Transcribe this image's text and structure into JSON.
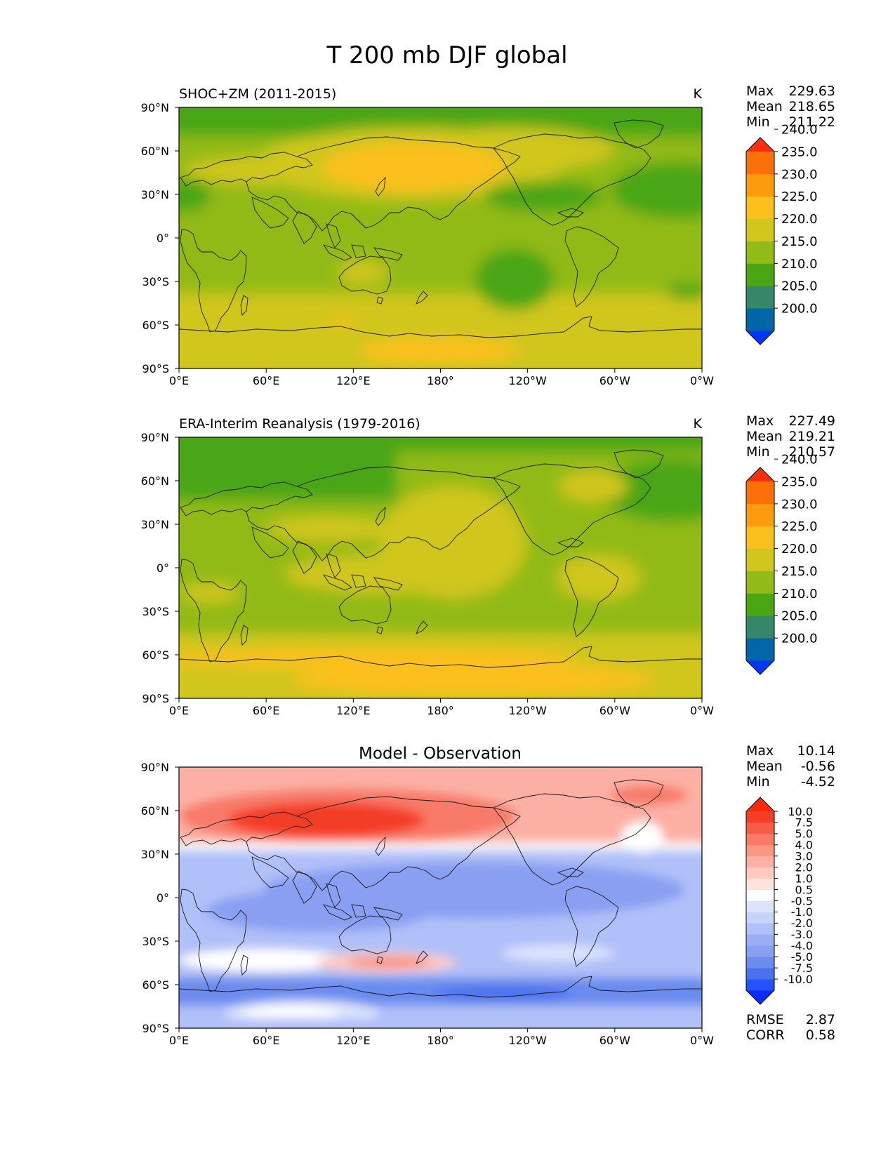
{
  "title": "T 200 mb DJF global",
  "colors": {
    "abs_levels": [
      "#0036ff",
      "#0066a8",
      "#36866a",
      "#4aa612",
      "#92ba18",
      "#d0c61e",
      "#fcc01c",
      "#fc9c0c",
      "#fc700a",
      "#fc2e10"
    ],
    "diff_levels": [
      "#0a2cff",
      "#2454f8",
      "#4a72f0",
      "#6a8cee",
      "#889ff2",
      "#9aaef6",
      "#b0c0f8",
      "#c6d4fa",
      "#dce4fc",
      "#ffffff",
      "#ffe2dc",
      "#ffcac0",
      "#fcb0a4",
      "#fa9686",
      "#f87a68",
      "#f65c48",
      "#f43e28",
      "#fc2a08"
    ],
    "coast": "#1a1a1a"
  },
  "chart_data": [
    {
      "type": "heatmap",
      "panel": "model",
      "title": "SHOC+ZM (2011-2015)",
      "units": "K",
      "stats": [
        {
          "label": "Max",
          "value": "229.63"
        },
        {
          "label": "Mean",
          "value": "218.65"
        },
        {
          "label": "Min",
          "value": "211.22"
        }
      ],
      "colorbar_ticks": [
        "200.0",
        "205.0",
        "210.0",
        "215.0",
        "220.0",
        "225.0",
        "230.0",
        "235.0",
        "240.0"
      ],
      "xticks": [
        "0°E",
        "60°E",
        "120°E",
        "180°",
        "120°W",
        "60°W",
        "0°W"
      ],
      "yticks": [
        "90°N",
        "60°N",
        "30°N",
        "0°",
        "30°S",
        "60°S",
        "90°S"
      ],
      "xlim": [
        0,
        360
      ],
      "ylim": [
        -90,
        90
      ]
    },
    {
      "type": "heatmap",
      "panel": "observation",
      "title": "ERA-Interim Reanalysis (1979-2016)",
      "units": "K",
      "stats": [
        {
          "label": "Max",
          "value": "227.49"
        },
        {
          "label": "Mean",
          "value": "219.21"
        },
        {
          "label": "Min",
          "value": "210.57"
        }
      ],
      "colorbar_ticks": [
        "200.0",
        "205.0",
        "210.0",
        "215.0",
        "220.0",
        "225.0",
        "230.0",
        "235.0",
        "240.0"
      ],
      "xticks": [
        "0°E",
        "60°E",
        "120°E",
        "180°",
        "120°W",
        "60°W",
        "0°W"
      ],
      "yticks": [
        "90°N",
        "60°N",
        "30°N",
        "0°",
        "30°S",
        "60°S",
        "90°S"
      ],
      "xlim": [
        0,
        360
      ],
      "ylim": [
        -90,
        90
      ]
    },
    {
      "type": "heatmap",
      "panel": "difference",
      "title": "Model - Observation",
      "units": "",
      "stats": [
        {
          "label": "Max",
          "value": "10.14"
        },
        {
          "label": "Mean",
          "value": "-0.56"
        },
        {
          "label": "Min",
          "value": "-4.52"
        }
      ],
      "colorbar_ticks": [
        "-10.0",
        "-7.5",
        "-5.0",
        "-4.0",
        "-3.0",
        "-2.0",
        "-1.0",
        "-0.5",
        "0.5",
        "1.0",
        "2.0",
        "3.0",
        "4.0",
        "5.0",
        "7.5",
        "10.0"
      ],
      "metrics": [
        {
          "label": "RMSE",
          "value": "2.87"
        },
        {
          "label": "CORR",
          "value": "0.58"
        }
      ],
      "xticks": [
        "0°E",
        "60°E",
        "120°E",
        "180°",
        "120°W",
        "60°W",
        "0°W"
      ],
      "yticks": [
        "90°N",
        "60°N",
        "30°N",
        "0°",
        "30°S",
        "60°S",
        "90°S"
      ],
      "xlim": [
        0,
        360
      ],
      "ylim": [
        -90,
        90
      ]
    }
  ]
}
